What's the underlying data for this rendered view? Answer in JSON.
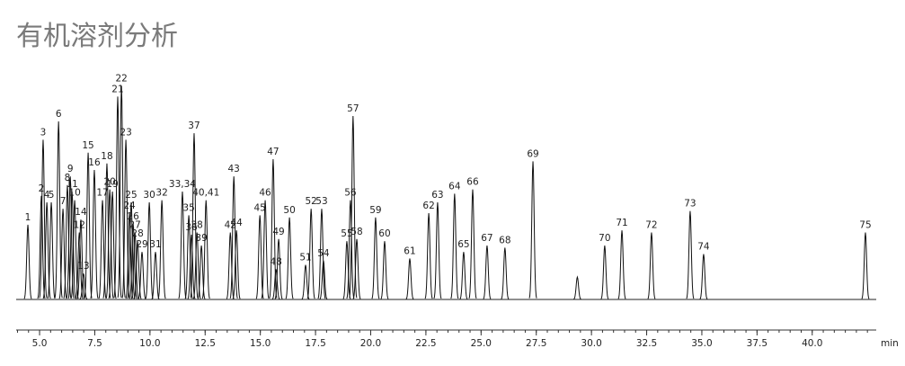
{
  "chart_data": {
    "type": "line",
    "title": "有机溶剂分析",
    "x_unit": "min",
    "color": "#111111",
    "x": [
      4.47,
      5.08,
      5.16,
      5.33,
      5.53,
      5.86,
      6.06,
      6.26,
      6.39,
      6.47,
      6.59,
      6.8,
      6.99,
      6.87,
      7.2,
      7.48,
      7.85,
      8.05,
      8.3,
      8.18,
      8.54,
      8.71,
      8.91,
      9.07,
      9.15,
      9.24,
      9.32,
      9.44,
      9.64,
      9.97,
      10.25,
      10.54,
      11.47,
      11.76,
      11.88,
      12.0,
      12.13,
      12.33,
      12.54,
      13.64,
      13.8,
      13.92,
      14.98,
      15.22,
      15.58,
      15.71,
      15.83,
      16.32,
      17.05,
      17.3,
      17.78,
      17.86,
      18.92,
      19.08,
      19.2,
      19.37,
      20.22,
      20.63,
      21.77,
      22.63,
      23.03,
      23.8,
      24.21,
      24.62,
      25.27,
      26.08,
      27.35,
      29.36,
      30.6,
      31.38,
      32.72,
      34.47,
      35.08,
      42.41
    ],
    "values": [
      34.6,
      48,
      74,
      45,
      45,
      82.5,
      42,
      53,
      57,
      50,
      46,
      31,
      12,
      37,
      68,
      60,
      46,
      63,
      50,
      51,
      94,
      99,
      74,
      40,
      45,
      35,
      31,
      27,
      22,
      45,
      22,
      46,
      50,
      39,
      30,
      77,
      31,
      25,
      46,
      31,
      57,
      32,
      39,
      46,
      65,
      14,
      28,
      38,
      16,
      42,
      42,
      18,
      27,
      46,
      85,
      28,
      38,
      27,
      19,
      40,
      45,
      49,
      22,
      51,
      25,
      24,
      64,
      10.4,
      25,
      32,
      31,
      41,
      21,
      31
    ],
    "labels": [
      "1",
      "2",
      "3",
      "4",
      "5",
      "6",
      "7",
      "8",
      "9",
      "11",
      "10",
      "12",
      "13",
      "14",
      "15",
      "16",
      "17",
      "18",
      "19",
      "20",
      "21",
      "22",
      "23",
      "24",
      "25",
      "26",
      "27",
      "28",
      "29",
      "30",
      "31",
      "32",
      "33,34",
      "35",
      "36",
      "37",
      "38",
      "39",
      "40,41",
      "42",
      "43",
      "44",
      "45",
      "46",
      "47",
      "48",
      "49",
      "50",
      "51",
      "52",
      "53",
      "54",
      "55",
      "56",
      "57",
      "58",
      "59",
      "60",
      "61",
      "62",
      "63",
      "64",
      "65",
      "66",
      "67",
      "68",
      "69",
      null,
      "70",
      "71",
      "72",
      "73",
      "74",
      "75"
    ],
    "xlim": [
      3.94,
      42.9
    ],
    "ylim": [
      0,
      100
    ],
    "xticks": [
      {
        "value": 5,
        "label": "5.0"
      },
      7.5,
      {
        "value": 10,
        "label": "10.0"
      },
      12.5,
      {
        "value": 15,
        "label": "15.0"
      },
      17.5,
      {
        "value": 20,
        "label": "20.0"
      },
      22.5,
      {
        "value": 25,
        "label": "25.0"
      },
      27.5,
      {
        "value": 30,
        "label": "30.0"
      },
      32.5,
      {
        "value": 35,
        "label": "35.0"
      },
      37.5,
      {
        "value": 40,
        "label": "40.0"
      }
    ]
  }
}
